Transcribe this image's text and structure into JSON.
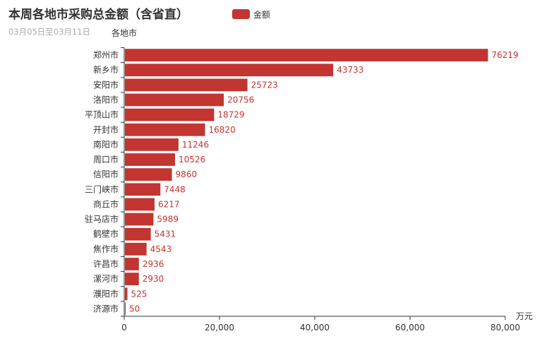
{
  "chart_data": {
    "type": "bar",
    "orientation": "horizontal",
    "title": "本周各地市采购总金额（含省直）",
    "subtitle": "03月05日至03月11日",
    "ylabel": "各地市",
    "xlabel": "万元",
    "legend": [
      "金额"
    ],
    "legend_position": "top",
    "color": "#c23531",
    "xlim": [
      0,
      80000
    ],
    "xticks": [
      "0",
      "20,000",
      "40,000",
      "60,000",
      "80,000"
    ],
    "xtick_values": [
      0,
      20000,
      40000,
      60000,
      80000
    ],
    "categories": [
      "郑州市",
      "新乡市",
      "安阳市",
      "洛阳市",
      "平顶山市",
      "开封市",
      "南阳市",
      "周口市",
      "信阳市",
      "三门峡市",
      "商丘市",
      "驻马店市",
      "鹤壁市",
      "焦作市",
      "许昌市",
      "漯河市",
      "濮阳市",
      "济源市"
    ],
    "values": [
      76219,
      43733,
      25723,
      20756,
      18729,
      16820,
      11246,
      10526,
      9860,
      7448,
      6217,
      5989,
      5431,
      4543,
      2936,
      2930,
      525,
      50
    ]
  }
}
